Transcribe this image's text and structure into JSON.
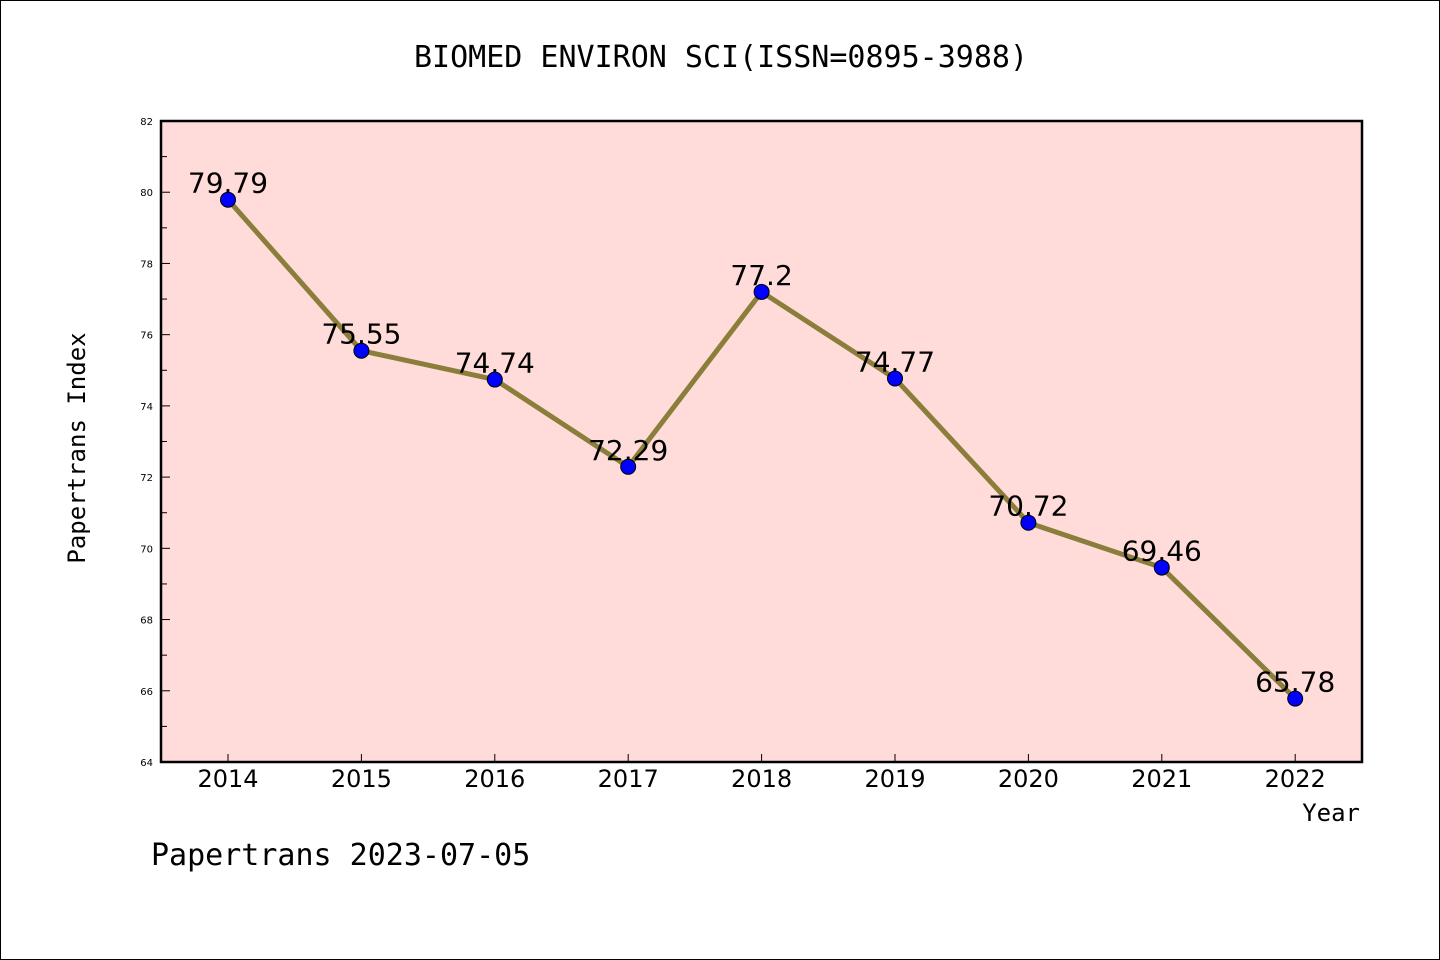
{
  "chart_data": {
    "type": "line",
    "title": "BIOMED ENVIRON SCI(ISSN=0895-3988)",
    "xlabel": "Year",
    "ylabel": "Papertrans Index",
    "footer": "Papertrans 2023-07-05",
    "x": [
      "2014",
      "2015",
      "2016",
      "2017",
      "2018",
      "2019",
      "2020",
      "2021",
      "2022"
    ],
    "values": [
      79.79,
      75.55,
      74.74,
      72.29,
      77.2,
      74.77,
      70.72,
      69.46,
      65.78
    ],
    "data_labels": [
      "79.79",
      "75.55",
      "74.74",
      "72.29",
      "77.2",
      "74.77",
      "70.72",
      "69.46",
      "65.78"
    ],
    "ylim": [
      64,
      82
    ],
    "yticks": [
      64,
      66,
      68,
      70,
      72,
      74,
      76,
      78,
      80,
      82
    ],
    "grid": false,
    "colors": {
      "plot_background": "#FFDCDA",
      "line": "#8B7D3A",
      "marker": "#0000FF"
    }
  }
}
